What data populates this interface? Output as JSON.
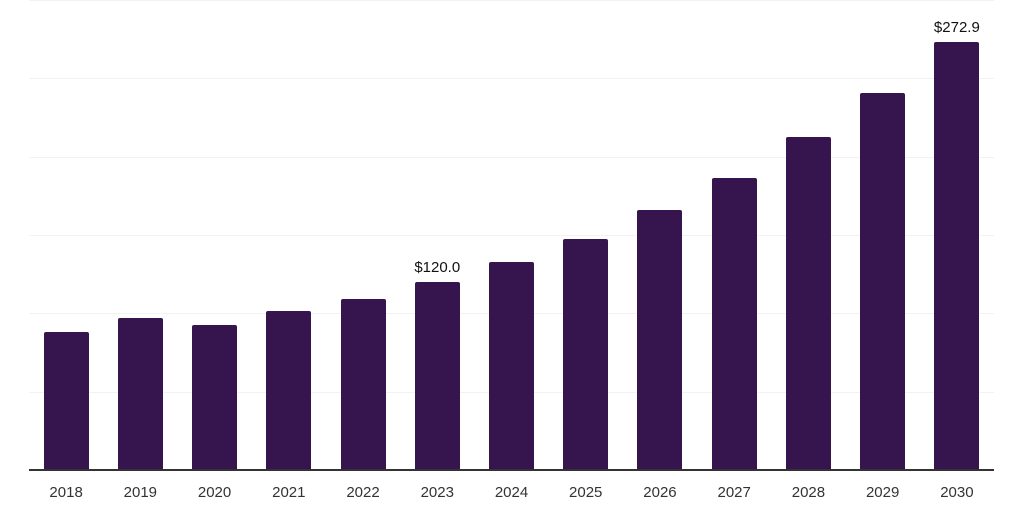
{
  "chart_data": {
    "type": "bar",
    "categories": [
      "2018",
      "2019",
      "2020",
      "2021",
      "2022",
      "2023",
      "2024",
      "2025",
      "2026",
      "2027",
      "2028",
      "2029",
      "2030"
    ],
    "values": [
      88.0,
      97.2,
      92.8,
      101.2,
      109.4,
      120.0,
      132.7,
      147.2,
      166.0,
      186.2,
      212.6,
      240.5,
      272.9
    ],
    "point_labels": [
      "",
      "",
      "",
      "",
      "",
      "$120.0",
      "",
      "",
      "",
      "",
      "",
      "",
      "$272.9"
    ],
    "title": "",
    "xlabel": "",
    "ylabel": "",
    "ylim": [
      0,
      300
    ],
    "gridline_values": [
      50,
      100,
      150,
      200,
      250,
      300
    ],
    "grid": "horizontal-only",
    "legend": "none",
    "value_prefix": "$",
    "colors": {
      "bar": "#36154E",
      "gridline": "#f2f2f2",
      "axis_line": "#333333",
      "tick_label": "#333333",
      "data_label": "#111111",
      "background": "#ffffff"
    }
  }
}
